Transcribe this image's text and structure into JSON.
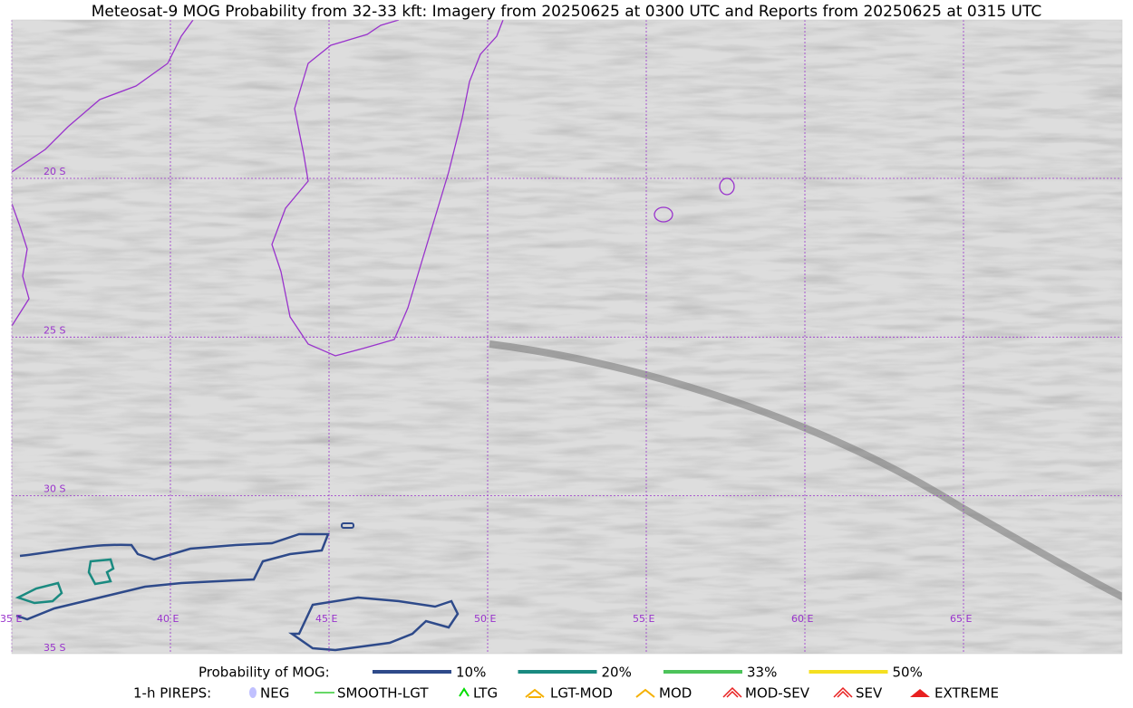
{
  "title": "Meteosat-9 MOG Probability from 32-33 kft: Imagery from 20250625 at 0300 UTC and Reports from 20250625 at 0315 UTC",
  "map": {
    "lat_labels": [
      "20 S",
      "25 S",
      "30 S",
      "35 S"
    ],
    "lon_labels": [
      "35 E",
      "40 E",
      "45 E",
      "50 E",
      "55 E",
      "60 E",
      "65 E"
    ]
  },
  "legend": {
    "probability": {
      "label": "Probability of MOG:",
      "items": [
        {
          "label": "10%",
          "color": "#2e4a8a"
        },
        {
          "label": "20%",
          "color": "#1a8a80"
        },
        {
          "label": "33%",
          "color": "#4cc35a"
        },
        {
          "label": "50%",
          "color": "#f5e020"
        }
      ]
    },
    "pireps": {
      "label": "1-h PIREPS:",
      "items": [
        {
          "label": "NEG",
          "color": "#b0b0ff"
        },
        {
          "label": "SMOOTH-LGT",
          "color": "#33cc33"
        },
        {
          "label": "LTG",
          "color": "#00dd00"
        },
        {
          "label": "LGT-MOD",
          "color": "#f5b000"
        },
        {
          "label": "MOD",
          "color": "#f5b000"
        },
        {
          "label": "MOD-SEV",
          "color": "#e82020"
        },
        {
          "label": "SEV",
          "color": "#e82020"
        },
        {
          "label": "EXTREME",
          "color": "#e82020"
        }
      ]
    }
  }
}
